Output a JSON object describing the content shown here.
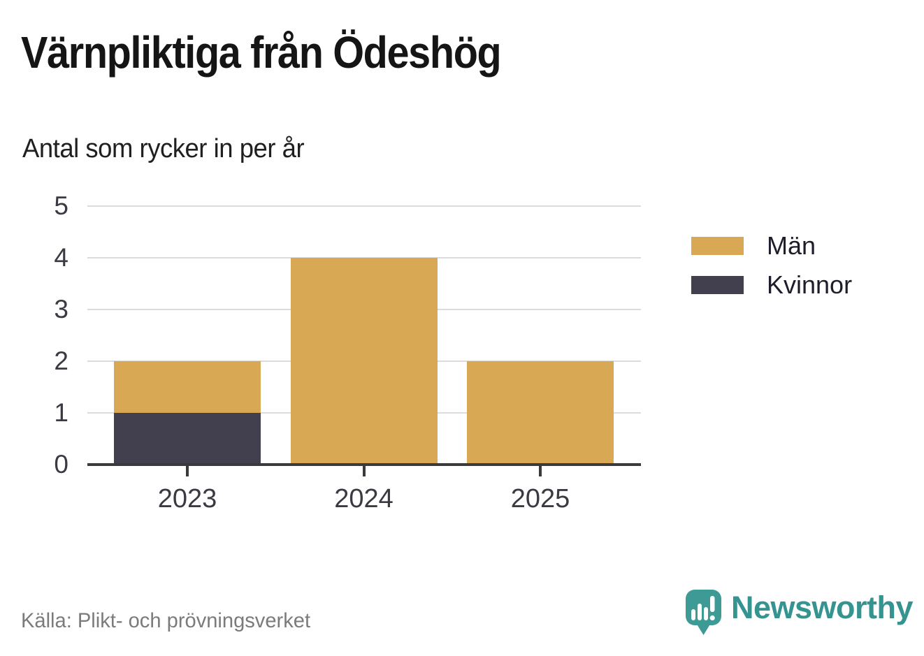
{
  "header": {
    "title": "Värnpliktiga från Ödeshög",
    "subtitle": "Antal som rycker in per år"
  },
  "chart_data": {
    "type": "bar",
    "stacked": true,
    "title": "Värnpliktiga från Ödeshög",
    "subtitle": "Antal som rycker in per år",
    "categories": [
      "2023",
      "2024",
      "2025"
    ],
    "series": [
      {
        "name": "Män",
        "color": "#d9a855",
        "values": [
          1,
          4,
          2
        ]
      },
      {
        "name": "Kvinnor",
        "color": "#423f4e",
        "values": [
          1,
          0,
          0
        ]
      }
    ],
    "stack_order_bottom_to_top": [
      "Kvinnor",
      "Män"
    ],
    "xlabel": "",
    "ylabel": "",
    "ylim": [
      0,
      5
    ],
    "yticks": [
      0,
      1,
      2,
      3,
      4,
      5
    ],
    "grid": true,
    "legend_position": "right"
  },
  "legend": {
    "items": [
      {
        "label": "Män",
        "color": "#d9a855"
      },
      {
        "label": "Kvinnor",
        "color": "#423f4e"
      }
    ]
  },
  "footer": {
    "source": "Källa: Plikt- och prövningsverket",
    "brand_name": "Newsworthy"
  },
  "icons": {
    "brand_logo": "newsworthy-speech-bubble-bar-chart-icon"
  },
  "colors": {
    "background": "#ffffff",
    "title_text": "#151515",
    "axis_text": "#3a3a42",
    "gridline": "#dcdcdc",
    "axis_line": "#3a3a3c",
    "source_text": "#7b7b7b",
    "brand_teal": "#3d9a95",
    "men_gold": "#d9a855",
    "women_dark": "#423f4e"
  }
}
